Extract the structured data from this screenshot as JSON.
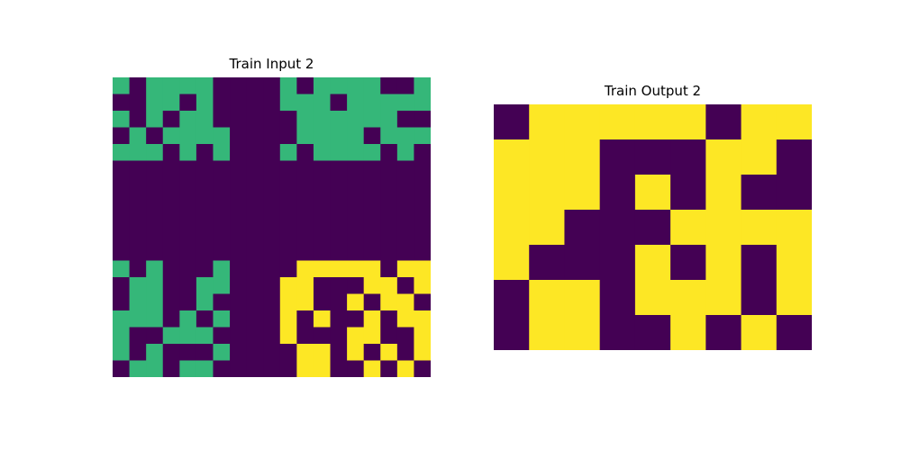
{
  "palette": {
    "0": "#440154",
    "3": "#35b779",
    "4": "#fde725"
  },
  "panels": [
    {
      "title": "Train Input 2",
      "grid": [
        [
          3,
          0,
          3,
          3,
          3,
          3,
          0,
          0,
          0,
          0,
          3,
          0,
          3,
          3,
          3,
          3,
          0,
          0,
          3
        ],
        [
          0,
          0,
          3,
          3,
          0,
          3,
          0,
          0,
          0,
          0,
          3,
          3,
          3,
          0,
          3,
          3,
          3,
          3,
          3
        ],
        [
          3,
          0,
          3,
          0,
          3,
          3,
          0,
          0,
          0,
          0,
          0,
          3,
          3,
          3,
          3,
          3,
          3,
          0,
          0
        ],
        [
          0,
          3,
          0,
          3,
          3,
          3,
          3,
          0,
          0,
          0,
          0,
          3,
          3,
          3,
          3,
          0,
          3,
          3,
          3
        ],
        [
          3,
          3,
          3,
          0,
          3,
          0,
          3,
          0,
          0,
          0,
          3,
          0,
          3,
          3,
          3,
          3,
          0,
          3,
          0
        ],
        [
          0,
          0,
          0,
          0,
          0,
          0,
          0,
          0,
          0,
          0,
          0,
          0,
          0,
          0,
          0,
          0,
          0,
          0,
          0
        ],
        [
          0,
          0,
          0,
          0,
          0,
          0,
          0,
          0,
          0,
          0,
          0,
          0,
          0,
          0,
          0,
          0,
          0,
          0,
          0
        ],
        [
          0,
          0,
          0,
          0,
          0,
          0,
          0,
          0,
          0,
          0,
          0,
          0,
          0,
          0,
          0,
          0,
          0,
          0,
          0
        ],
        [
          0,
          0,
          0,
          0,
          0,
          0,
          0,
          0,
          0,
          0,
          0,
          0,
          0,
          0,
          0,
          0,
          0,
          0,
          0
        ],
        [
          0,
          0,
          0,
          0,
          0,
          0,
          0,
          0,
          0,
          0,
          0,
          0,
          0,
          0,
          0,
          0,
          0,
          0,
          0
        ],
        [
          0,
          0,
          0,
          0,
          0,
          0,
          0,
          0,
          0,
          0,
          0,
          0,
          0,
          0,
          0,
          0,
          0,
          0,
          0
        ],
        [
          3,
          0,
          3,
          0,
          0,
          0,
          3,
          0,
          0,
          0,
          0,
          4,
          4,
          4,
          4,
          4,
          0,
          4,
          4
        ],
        [
          0,
          3,
          3,
          0,
          0,
          3,
          3,
          0,
          0,
          0,
          4,
          4,
          0,
          0,
          0,
          4,
          4,
          0,
          4
        ],
        [
          0,
          3,
          3,
          0,
          0,
          3,
          0,
          0,
          0,
          0,
          4,
          4,
          0,
          0,
          4,
          0,
          4,
          4,
          0
        ],
        [
          3,
          3,
          3,
          0,
          3,
          0,
          3,
          0,
          0,
          0,
          4,
          0,
          4,
          0,
          0,
          4,
          0,
          4,
          4
        ],
        [
          3,
          0,
          0,
          3,
          3,
          3,
          0,
          0,
          0,
          0,
          4,
          0,
          0,
          0,
          4,
          4,
          0,
          0,
          4
        ],
        [
          3,
          0,
          3,
          0,
          0,
          0,
          3,
          0,
          0,
          0,
          0,
          4,
          4,
          0,
          4,
          0,
          4,
          0,
          4
        ],
        [
          0,
          3,
          3,
          0,
          3,
          3,
          0,
          0,
          0,
          0,
          0,
          4,
          4,
          0,
          0,
          4,
          0,
          4,
          0
        ]
      ]
    },
    {
      "title": "Train Output 2",
      "grid": [
        [
          0,
          4,
          4,
          4,
          4,
          4,
          0,
          4,
          4
        ],
        [
          4,
          4,
          4,
          0,
          0,
          0,
          4,
          4,
          0
        ],
        [
          4,
          4,
          4,
          0,
          4,
          0,
          4,
          0,
          0
        ],
        [
          4,
          4,
          0,
          0,
          0,
          4,
          4,
          4,
          4
        ],
        [
          4,
          0,
          0,
          0,
          4,
          0,
          4,
          0,
          4
        ],
        [
          0,
          4,
          4,
          0,
          4,
          4,
          4,
          0,
          4
        ],
        [
          0,
          4,
          4,
          0,
          0,
          4,
          0,
          4,
          0
        ]
      ]
    }
  ]
}
